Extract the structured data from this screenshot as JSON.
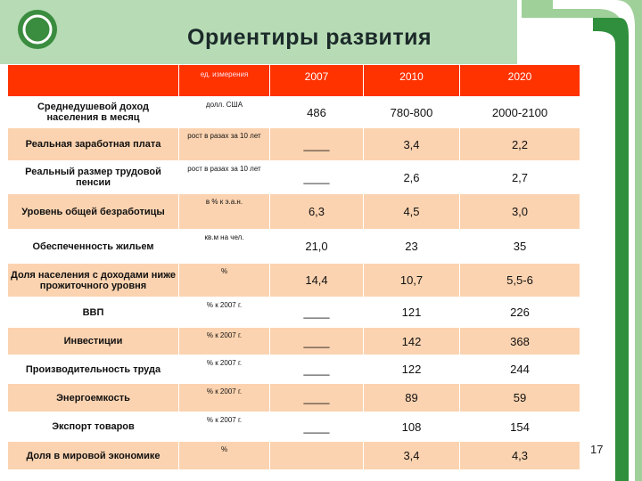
{
  "header": {
    "title": "Ориентиры развития"
  },
  "table": {
    "columns": [
      "ед. измерения",
      "2007",
      "2010",
      "2020"
    ],
    "rows": [
      [
        "Среднедушевой доход населения в месяц",
        "долл. США",
        "486",
        "780-800",
        "2000-2100"
      ],
      [
        "Реальная заработная плата",
        "рост в разах за 10 лет",
        "____",
        "3,4",
        "2,2"
      ],
      [
        "Реальный размер трудовой пенсии",
        "рост в разах за 10 лет",
        "____",
        "2,6",
        "2,7"
      ],
      [
        "Уровень общей безработицы",
        "в % к э.а.н.",
        "6,3",
        "4,5",
        "3,0"
      ],
      [
        "Обеспеченность жильем",
        "кв.м на чел.",
        "21,0",
        "23",
        "35"
      ],
      [
        "Доля населения с доходами ниже прожиточного уровня",
        "%",
        "14,4",
        "10,7",
        "5,5-6"
      ],
      [
        "ВВП",
        "% к 2007 г.",
        "____",
        "121",
        "226"
      ],
      [
        "Инвестиции",
        "% к 2007 г.",
        "____",
        "142",
        "368"
      ],
      [
        "Производительность труда",
        "% к 2007 г.",
        "____",
        "122",
        "244"
      ],
      [
        "Энергоемкость",
        "% к 2007 г.",
        "____",
        "89",
        "59"
      ],
      [
        "Экспорт товаров",
        "% к 2007 г.",
        "____",
        "108",
        "154"
      ],
      [
        "Доля в мировой экономике",
        "%",
        null,
        "3,4",
        "4,3"
      ]
    ]
  },
  "footer": {
    "page_number": "17"
  }
}
